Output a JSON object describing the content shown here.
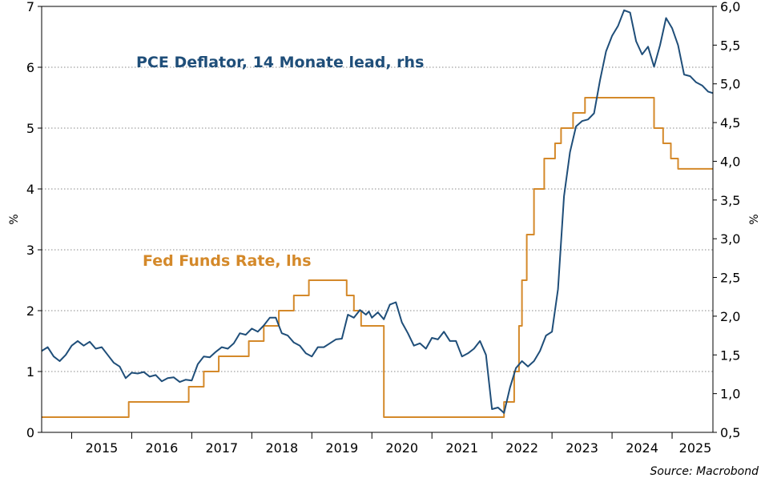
{
  "chart_data": {
    "type": "line",
    "title": "",
    "source": "Source: Macrobond",
    "left_axis": {
      "unit_label": "%",
      "range": [
        0,
        7
      ],
      "ticks": [
        0,
        1,
        2,
        3,
        4,
        5,
        6,
        7
      ],
      "tick_labels": [
        "0",
        "1",
        "2",
        "3",
        "4",
        "5",
        "6",
        "7"
      ]
    },
    "right_axis": {
      "unit_label": "%",
      "range": [
        0.5,
        6.0
      ],
      "ticks": [
        0.5,
        1.0,
        1.5,
        2.0,
        2.5,
        3.0,
        3.5,
        4.0,
        4.5,
        5.0,
        5.5,
        6.0
      ],
      "tick_labels": [
        "0,5",
        "1,0",
        "1,5",
        "2,0",
        "2,5",
        "3,0",
        "3,5",
        "4,0",
        "4,5",
        "5,0",
        "5,5",
        "6,0"
      ]
    },
    "x_axis": {
      "range": [
        2014.5,
        2025.68
      ],
      "year_labels": [
        "2015",
        "2016",
        "2017",
        "2018",
        "2019",
        "2020",
        "2021",
        "2022",
        "2023",
        "2024",
        "2025"
      ]
    },
    "grid": "horizontal dotted lines at left-axis ticks",
    "series": [
      {
        "name": "Fed Funds Rate, lhs",
        "axis": "left",
        "color": "#d4892a",
        "style": "step",
        "points": [
          [
            2014.5,
            0.25
          ],
          [
            2015.95,
            0.25
          ],
          [
            2015.95,
            0.5
          ],
          [
            2016.95,
            0.5
          ],
          [
            2016.95,
            0.75
          ],
          [
            2017.2,
            0.75
          ],
          [
            2017.2,
            1.0
          ],
          [
            2017.45,
            1.0
          ],
          [
            2017.45,
            1.25
          ],
          [
            2017.95,
            1.25
          ],
          [
            2017.95,
            1.5
          ],
          [
            2018.2,
            1.5
          ],
          [
            2018.2,
            1.75
          ],
          [
            2018.45,
            1.75
          ],
          [
            2018.45,
            2.0
          ],
          [
            2018.7,
            2.0
          ],
          [
            2018.7,
            2.25
          ],
          [
            2018.95,
            2.25
          ],
          [
            2018.95,
            2.5
          ],
          [
            2019.58,
            2.5
          ],
          [
            2019.58,
            2.25
          ],
          [
            2019.7,
            2.25
          ],
          [
            2019.7,
            2.0
          ],
          [
            2019.82,
            2.0
          ],
          [
            2019.82,
            1.75
          ],
          [
            2020.2,
            1.75
          ],
          [
            2020.2,
            0.25
          ],
          [
            2022.2,
            0.25
          ],
          [
            2022.2,
            0.5
          ],
          [
            2022.37,
            0.5
          ],
          [
            2022.37,
            1.0
          ],
          [
            2022.45,
            1.0
          ],
          [
            2022.45,
            1.75
          ],
          [
            2022.5,
            1.75
          ],
          [
            2022.5,
            2.5
          ],
          [
            2022.58,
            2.5
          ],
          [
            2022.58,
            3.25
          ],
          [
            2022.7,
            3.25
          ],
          [
            2022.7,
            4.0
          ],
          [
            2022.87,
            4.0
          ],
          [
            2022.87,
            4.5
          ],
          [
            2023.05,
            4.5
          ],
          [
            2023.05,
            4.75
          ],
          [
            2023.15,
            4.75
          ],
          [
            2023.15,
            5.0
          ],
          [
            2023.35,
            5.0
          ],
          [
            2023.35,
            5.25
          ],
          [
            2023.55,
            5.25
          ],
          [
            2023.55,
            5.5
          ],
          [
            2024.7,
            5.5
          ],
          [
            2024.7,
            5.0
          ],
          [
            2024.85,
            5.0
          ],
          [
            2024.85,
            4.75
          ],
          [
            2024.98,
            4.75
          ],
          [
            2024.98,
            4.5
          ],
          [
            2025.1,
            4.5
          ],
          [
            2025.1,
            4.33
          ],
          [
            2025.68,
            4.33
          ]
        ]
      },
      {
        "name": "PCE Deflator, 14 Monate lead, rhs",
        "axis": "right",
        "color": "#1f4e79",
        "style": "line",
        "points": [
          [
            2014.5,
            1.55
          ],
          [
            2014.6,
            1.6
          ],
          [
            2014.7,
            1.48
          ],
          [
            2014.8,
            1.42
          ],
          [
            2014.9,
            1.5
          ],
          [
            2015.0,
            1.62
          ],
          [
            2015.1,
            1.68
          ],
          [
            2015.2,
            1.62
          ],
          [
            2015.3,
            1.67
          ],
          [
            2015.4,
            1.58
          ],
          [
            2015.5,
            1.6
          ],
          [
            2015.6,
            1.5
          ],
          [
            2015.7,
            1.4
          ],
          [
            2015.8,
            1.35
          ],
          [
            2015.9,
            1.2
          ],
          [
            2016.0,
            1.27
          ],
          [
            2016.1,
            1.26
          ],
          [
            2016.2,
            1.28
          ],
          [
            2016.3,
            1.22
          ],
          [
            2016.4,
            1.24
          ],
          [
            2016.5,
            1.16
          ],
          [
            2016.6,
            1.2
          ],
          [
            2016.7,
            1.21
          ],
          [
            2016.8,
            1.15
          ],
          [
            2016.9,
            1.18
          ],
          [
            2017.0,
            1.17
          ],
          [
            2017.1,
            1.38
          ],
          [
            2017.2,
            1.48
          ],
          [
            2017.3,
            1.47
          ],
          [
            2017.4,
            1.54
          ],
          [
            2017.5,
            1.6
          ],
          [
            2017.6,
            1.58
          ],
          [
            2017.7,
            1.65
          ],
          [
            2017.8,
            1.78
          ],
          [
            2017.9,
            1.76
          ],
          [
            2018.0,
            1.84
          ],
          [
            2018.1,
            1.8
          ],
          [
            2018.2,
            1.88
          ],
          [
            2018.3,
            1.98
          ],
          [
            2018.4,
            1.98
          ],
          [
            2018.5,
            1.78
          ],
          [
            2018.6,
            1.75
          ],
          [
            2018.7,
            1.66
          ],
          [
            2018.8,
            1.62
          ],
          [
            2018.9,
            1.52
          ],
          [
            2019.0,
            1.48
          ],
          [
            2019.1,
            1.6
          ],
          [
            2019.2,
            1.6
          ],
          [
            2019.3,
            1.65
          ],
          [
            2019.4,
            1.7
          ],
          [
            2019.5,
            1.71
          ],
          [
            2019.6,
            2.02
          ],
          [
            2019.7,
            1.98
          ],
          [
            2019.8,
            2.08
          ],
          [
            2019.9,
            2.02
          ],
          [
            2019.95,
            2.06
          ],
          [
            2020.0,
            1.98
          ],
          [
            2020.1,
            2.05
          ],
          [
            2020.2,
            1.96
          ],
          [
            2020.3,
            2.15
          ],
          [
            2020.4,
            2.18
          ],
          [
            2020.5,
            1.92
          ],
          [
            2020.6,
            1.78
          ],
          [
            2020.7,
            1.62
          ],
          [
            2020.8,
            1.65
          ],
          [
            2020.9,
            1.58
          ],
          [
            2021.0,
            1.72
          ],
          [
            2021.1,
            1.7
          ],
          [
            2021.2,
            1.8
          ],
          [
            2021.3,
            1.68
          ],
          [
            2021.4,
            1.68
          ],
          [
            2021.5,
            1.48
          ],
          [
            2021.6,
            1.52
          ],
          [
            2021.7,
            1.58
          ],
          [
            2021.8,
            1.68
          ],
          [
            2021.9,
            1.5
          ],
          [
            2022.0,
            0.8
          ],
          [
            2022.1,
            0.82
          ],
          [
            2022.2,
            0.75
          ],
          [
            2022.3,
            1.08
          ],
          [
            2022.4,
            1.33
          ],
          [
            2022.5,
            1.42
          ],
          [
            2022.6,
            1.35
          ],
          [
            2022.7,
            1.42
          ],
          [
            2022.8,
            1.55
          ],
          [
            2022.9,
            1.75
          ],
          [
            2023.0,
            1.8
          ],
          [
            2023.1,
            2.35
          ],
          [
            2023.2,
            3.55
          ],
          [
            2023.3,
            4.12
          ],
          [
            2023.4,
            4.45
          ],
          [
            2023.5,
            4.52
          ],
          [
            2023.6,
            4.54
          ],
          [
            2023.7,
            4.62
          ],
          [
            2023.8,
            5.05
          ],
          [
            2023.9,
            5.42
          ],
          [
            2024.0,
            5.62
          ],
          [
            2024.1,
            5.75
          ],
          [
            2024.2,
            5.95
          ],
          [
            2024.3,
            5.92
          ],
          [
            2024.4,
            5.55
          ],
          [
            2024.5,
            5.38
          ],
          [
            2024.6,
            5.48
          ],
          [
            2024.7,
            5.22
          ],
          [
            2024.8,
            5.5
          ],
          [
            2024.9,
            5.85
          ],
          [
            2025.0,
            5.72
          ],
          [
            2025.1,
            5.5
          ],
          [
            2025.2,
            5.12
          ],
          [
            2025.3,
            5.1
          ],
          [
            2025.4,
            5.02
          ],
          [
            2025.5,
            4.98
          ],
          [
            2025.6,
            4.9
          ],
          [
            2025.68,
            4.88
          ]
        ]
      }
    ],
    "annotations": [
      {
        "text": "PCE Deflator, 14 Monate lead, rhs",
        "color": "#1f4e79"
      },
      {
        "text": "Fed Funds Rate, lhs",
        "color": "#d4892a"
      }
    ]
  }
}
